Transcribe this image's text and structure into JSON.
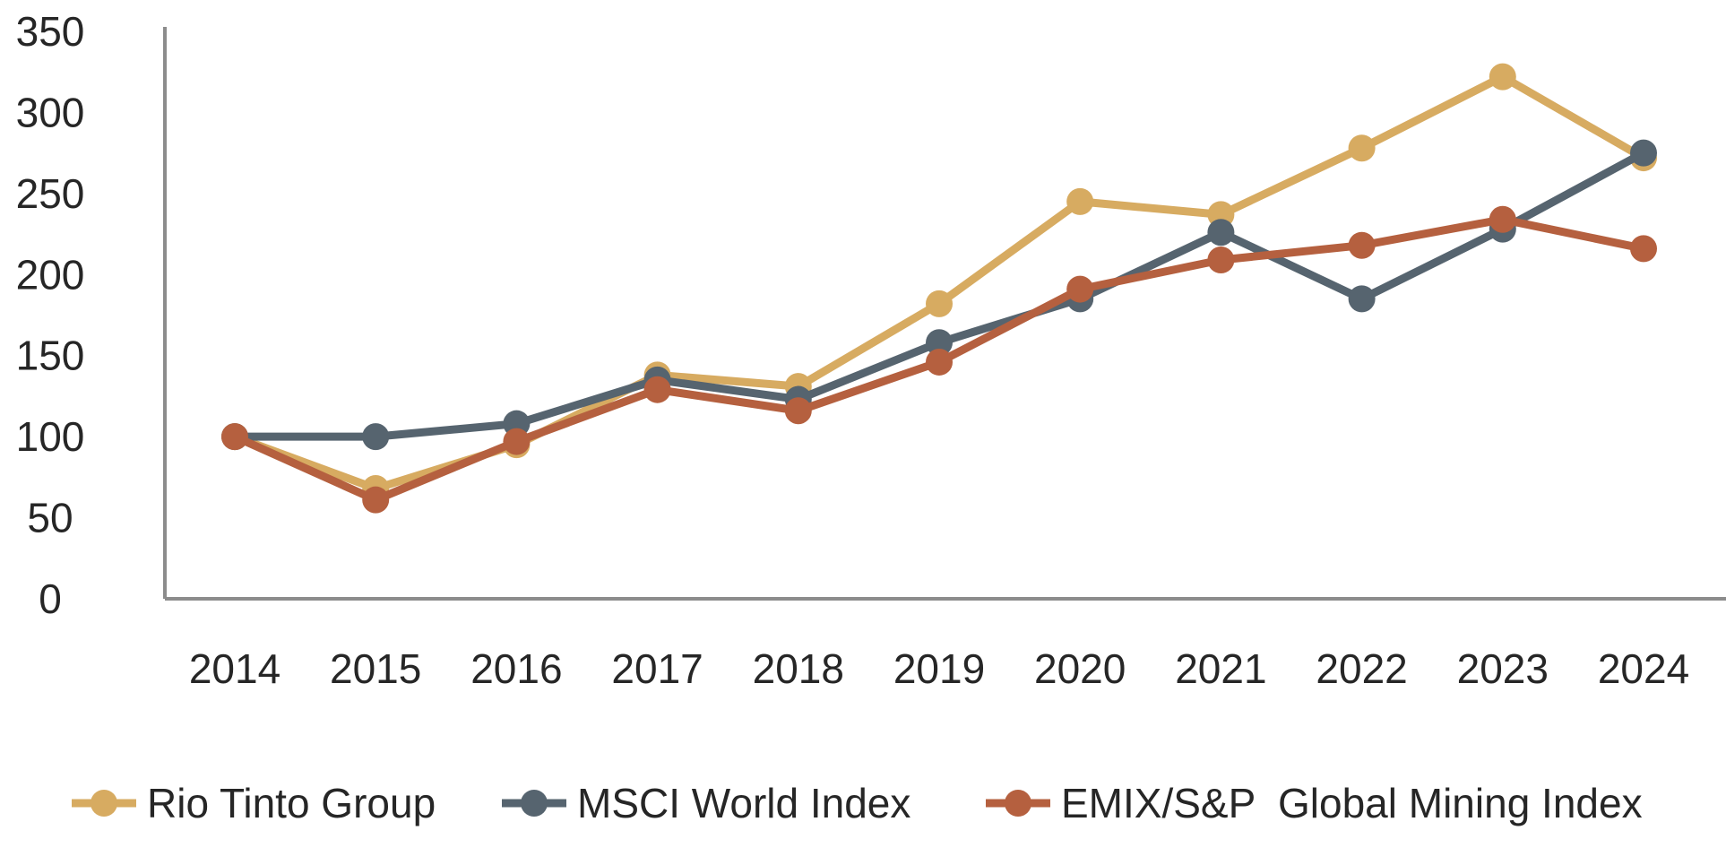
{
  "chart_data": {
    "type": "line",
    "title": "",
    "xlabel": "",
    "ylabel": "",
    "categories": [
      "2014",
      "2015",
      "2016",
      "2017",
      "2018",
      "2019",
      "2020",
      "2021",
      "2022",
      "2023",
      "2024"
    ],
    "ylim": [
      0,
      350
    ],
    "yticks": [
      0,
      50,
      100,
      150,
      200,
      250,
      300,
      350
    ],
    "grid": false,
    "legend_position": "bottom",
    "series": [
      {
        "name": "Rio Tinto Group",
        "color": "#D7AB61",
        "values": [
          100,
          68,
          95,
          138,
          131,
          182,
          245,
          237,
          278,
          322,
          272
        ]
      },
      {
        "name": "MSCI World Index",
        "color": "#56646F",
        "values": [
          100,
          100,
          108,
          135,
          123,
          158,
          185,
          226,
          185,
          228,
          275
        ]
      },
      {
        "name": "EMIX/S&P  Global Mining Index",
        "color": "#B5603F",
        "values": [
          100,
          61,
          97,
          129,
          116,
          146,
          191,
          209,
          218,
          234,
          216
        ]
      }
    ]
  }
}
